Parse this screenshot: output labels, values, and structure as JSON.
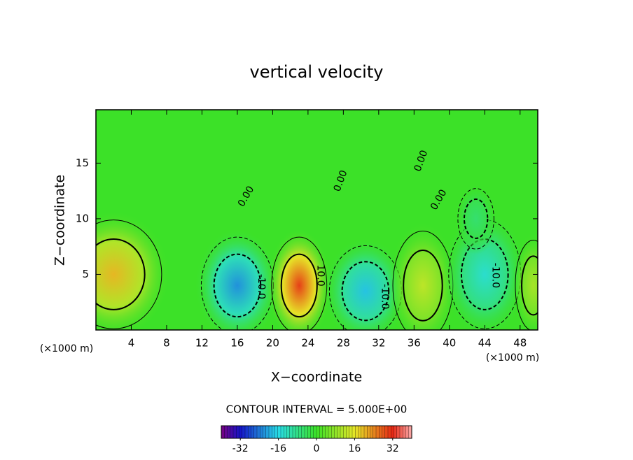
{
  "chart_data": {
    "type": "contour",
    "title": "vertical velocity",
    "xlabel": "X−coordinate",
    "ylabel": "Z−coordinate",
    "x_unit": "(×1000 m)",
    "y_unit": "(×1000 m)",
    "xlim": [
      0,
      50
    ],
    "ylim": [
      0,
      19.8
    ],
    "xticks": [
      4,
      8,
      12,
      16,
      20,
      24,
      28,
      32,
      36,
      40,
      44,
      48
    ],
    "yticks": [
      5,
      10,
      15
    ],
    "extrema": [
      {
        "x": 2,
        "z": 5,
        "value": 20,
        "sx": 4,
        "sz": 3.6
      },
      {
        "x": 16,
        "z": 4,
        "value": -22,
        "sx": 3,
        "sz": 3.2
      },
      {
        "x": 23,
        "z": 4,
        "value": 30,
        "sx": 2.3,
        "sz": 3.2
      },
      {
        "x": 30.5,
        "z": 3.5,
        "value": -18,
        "sx": 3,
        "sz": 3
      },
      {
        "x": 37,
        "z": 4,
        "value": 12,
        "sx": 2.5,
        "sz": 3.6
      },
      {
        "x": 44,
        "z": 5,
        "value": -14,
        "sx": 3,
        "sz": 3.6
      },
      {
        "x": 49.5,
        "z": 4,
        "value": 10,
        "sx": 1.5,
        "sz": 3
      },
      {
        "x": 43,
        "z": 10,
        "value": -6,
        "sx": 1.5,
        "sz": 2
      }
    ],
    "contour_labels": [
      {
        "label": "10.0",
        "x": 25.4,
        "z": 4.9
      },
      {
        "label": "-10.0",
        "x": 18.7,
        "z": 3.9
      },
      {
        "label": "-10.0",
        "x": 32.7,
        "z": 3.0
      },
      {
        "label": "-10.0",
        "x": 45.2,
        "z": 4.9
      },
      {
        "label": "0.00",
        "x": 17,
        "z": 12
      },
      {
        "label": "0.00",
        "x": 27.7,
        "z": 13.4
      },
      {
        "label": "0.00",
        "x": 36.8,
        "z": 15.2
      },
      {
        "label": "0.00",
        "x": 38.8,
        "z": 11.7
      }
    ],
    "contour_interval": "CONTOUR INTERVAL = 5.000E+00",
    "colorbar": {
      "lim": [
        -40,
        40
      ],
      "ticks": [
        -32,
        -16,
        0,
        16,
        32
      ]
    }
  }
}
